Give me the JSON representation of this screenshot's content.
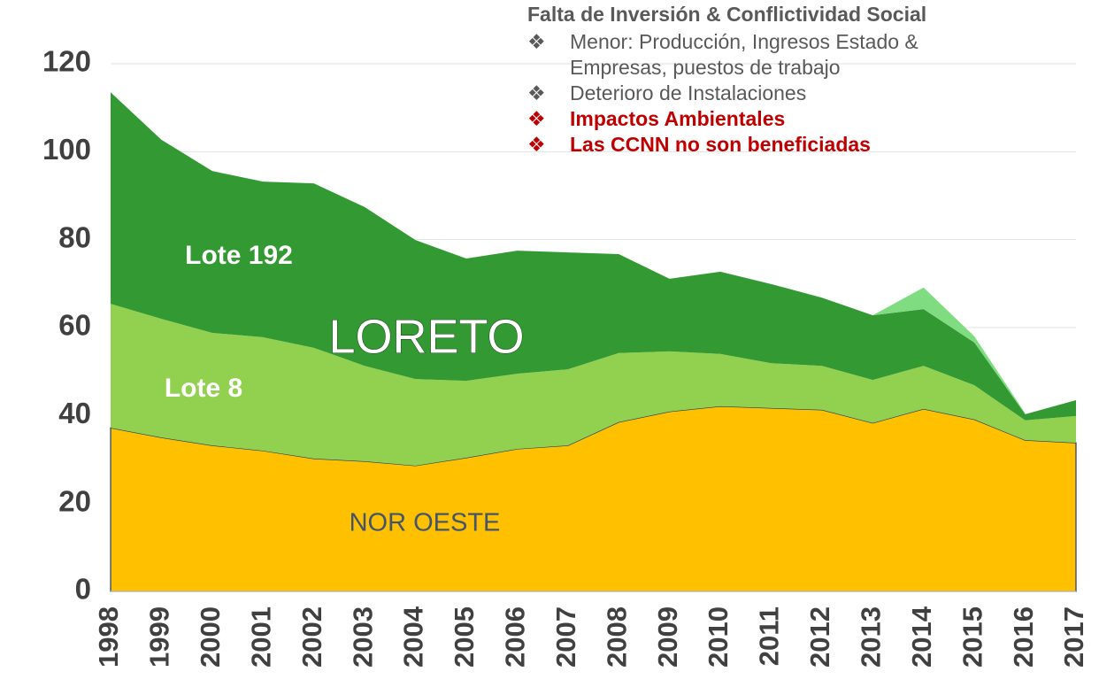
{
  "chart_data": {
    "type": "stacked_area",
    "categories": [
      "1998",
      "1999",
      "2000",
      "2001",
      "2002",
      "2003",
      "2004",
      "2005",
      "2006",
      "2007",
      "2008",
      "2009",
      "2010",
      "2011",
      "2012",
      "2013",
      "2014",
      "2015",
      "2016",
      "2017"
    ],
    "series": [
      {
        "name": "NOR OESTE",
        "color": "#ffc000",
        "values": [
          37.2,
          35.0,
          33.2,
          32.0,
          30.2,
          29.6,
          28.6,
          30.4,
          32.4,
          33.2,
          38.5,
          40.9,
          42.1,
          41.7,
          41.3,
          38.3,
          41.5,
          39.1,
          34.4,
          33.8
        ]
      },
      {
        "name": "Lote 8",
        "color": "#92d050",
        "values": [
          28.2,
          27.0,
          25.6,
          25.8,
          25.2,
          21.7,
          19.7,
          17.5,
          17.1,
          17.3,
          15.7,
          13.7,
          11.9,
          10.2,
          10.0,
          9.8,
          9.8,
          7.8,
          4.5,
          6.1
        ]
      },
      {
        "name": "Lote 192",
        "color": "#339a33",
        "values": [
          48.1,
          40.7,
          36.8,
          35.4,
          37.4,
          36.1,
          31.6,
          27.8,
          28.0,
          26.6,
          22.5,
          16.5,
          18.7,
          18.0,
          15.5,
          14.7,
          12.9,
          9.7,
          1.4,
          3.6
        ]
      },
      {
        "color": "#80dc80",
        "values": [
          null,
          null,
          null,
          null,
          null,
          null,
          null,
          null,
          null,
          null,
          null,
          null,
          null,
          null,
          null,
          0,
          4.9,
          1.4,
          0.2,
          null
        ]
      }
    ],
    "annotations": [
      "LORETO"
    ],
    "ylim": [
      0,
      120
    ],
    "yticks": [
      0,
      20,
      40,
      60,
      80,
      100,
      120
    ],
    "grid": true,
    "notes": {
      "title": "Falta de Inversión & Conflictividad Social",
      "bullets": [
        {
          "symbol": "❖",
          "text": "Menor: Producción, Ingresos Estado & Empresas, puestos de trabajo"
        },
        {
          "symbol": "❖",
          "text": "Deterioro de Instalaciones"
        },
        {
          "symbol": "❖",
          "text": "Impactos Ambientales"
        },
        {
          "symbol": "❖",
          "text": "Las CCNN no son beneficiadas"
        }
      ]
    }
  }
}
